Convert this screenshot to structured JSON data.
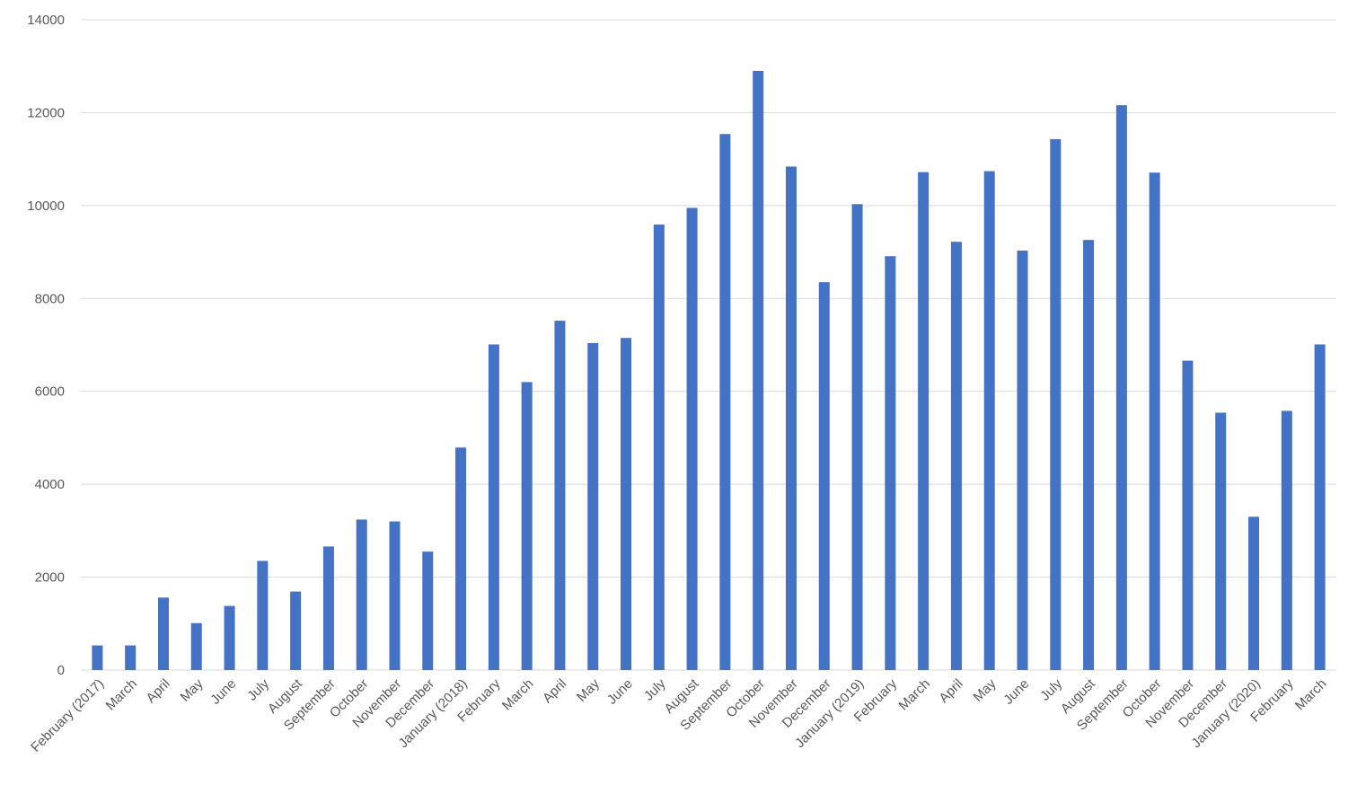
{
  "chart_data": {
    "type": "bar",
    "title": "",
    "xlabel": "",
    "ylabel": "",
    "ylim": [
      0,
      14000
    ],
    "yticks": [
      0,
      2000,
      4000,
      6000,
      8000,
      10000,
      12000,
      14000
    ],
    "grid": true,
    "legend": "none",
    "bar_color": "#4472c4",
    "categories": [
      "February (2017)",
      "March",
      "April",
      "May",
      "June",
      "July",
      "August",
      "September",
      "October",
      "November",
      "December",
      "January (2018)",
      "February",
      "March",
      "April",
      "May",
      "June",
      "July",
      "August",
      "September",
      "October",
      "November",
      "December",
      "January (2019)",
      "February",
      "March",
      "April",
      "May",
      "June",
      "July",
      "August",
      "September",
      "October",
      "November",
      "December",
      "January (2020)",
      "February",
      "March"
    ],
    "values": [
      530,
      530,
      1560,
      1010,
      1380,
      2350,
      1690,
      2660,
      3240,
      3200,
      2550,
      4790,
      7010,
      6200,
      7520,
      7040,
      7150,
      9590,
      9950,
      11540,
      12900,
      10840,
      8350,
      10030,
      8910,
      10720,
      9220,
      10740,
      9030,
      11430,
      9260,
      12160,
      10710,
      6660,
      5540,
      3300,
      5580,
      7010
    ]
  }
}
